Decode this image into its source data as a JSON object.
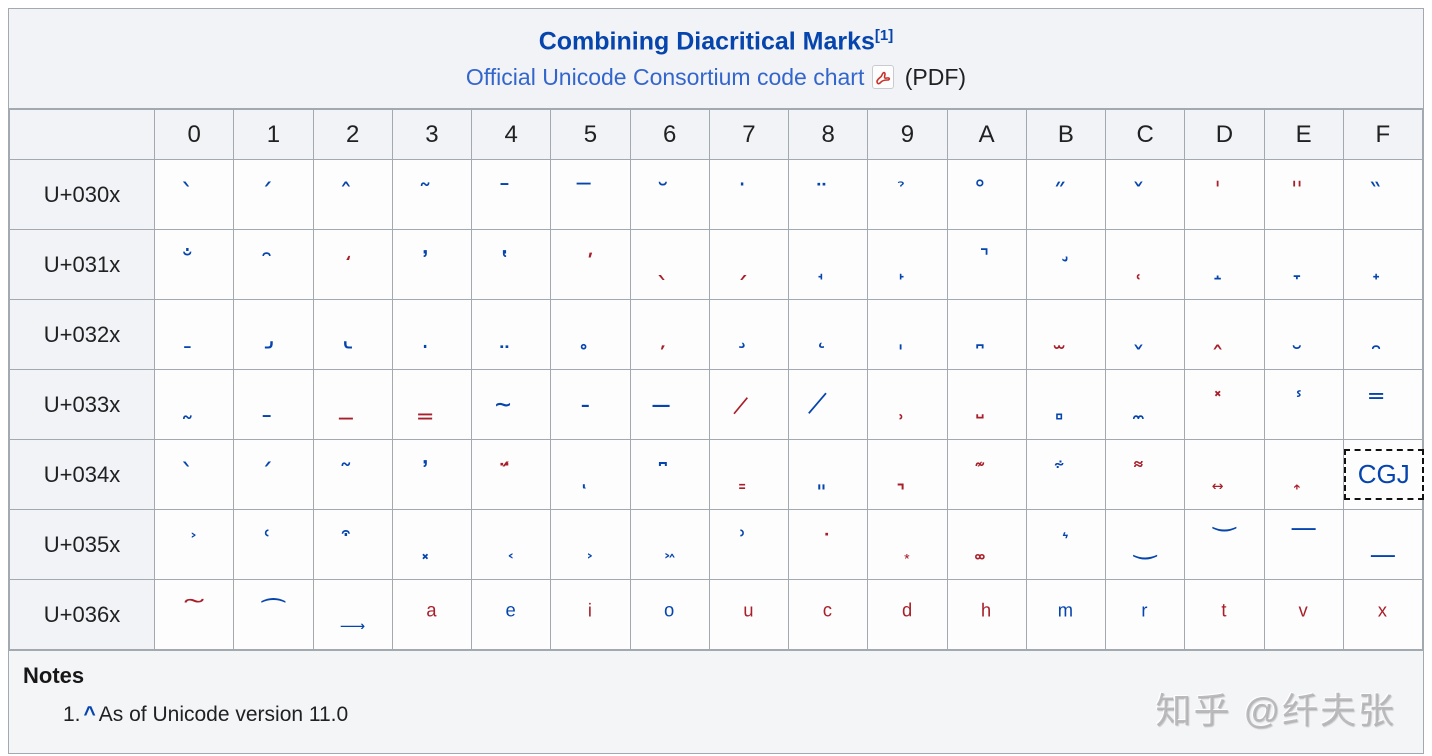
{
  "header": {
    "title": "Combining Diacritical Marks",
    "title_ref": "[1]",
    "subtitle_link": "Official Unicode Consortium code chart",
    "subtitle_suffix": "(PDF)"
  },
  "colors": {
    "blue": "#0645ad",
    "red": "#a81f29"
  },
  "table": {
    "col_headers": [
      "0",
      "1",
      "2",
      "3",
      "4",
      "5",
      "6",
      "7",
      "8",
      "9",
      "A",
      "B",
      "C",
      "D",
      "E",
      "F"
    ],
    "rows": [
      {
        "label": "U+030x",
        "cells": [
          {
            "char": "̀",
            "color": "blue"
          },
          {
            "char": "́",
            "color": "blue"
          },
          {
            "char": "̂",
            "color": "blue"
          },
          {
            "char": "̃",
            "color": "blue"
          },
          {
            "char": "̄",
            "color": "blue"
          },
          {
            "char": "̅",
            "color": "blue"
          },
          {
            "char": "̆",
            "color": "blue"
          },
          {
            "char": "̇",
            "color": "blue"
          },
          {
            "char": "̈",
            "color": "blue"
          },
          {
            "char": "̉",
            "color": "blue"
          },
          {
            "char": "̊",
            "color": "blue"
          },
          {
            "char": "̋",
            "color": "blue"
          },
          {
            "char": "̌",
            "color": "blue"
          },
          {
            "char": "̍",
            "color": "red"
          },
          {
            "char": "̎",
            "color": "red"
          },
          {
            "char": "̏",
            "color": "blue"
          }
        ]
      },
      {
        "label": "U+031x",
        "cells": [
          {
            "char": "̐",
            "color": "blue"
          },
          {
            "char": "̑",
            "color": "blue"
          },
          {
            "char": "̒",
            "color": "red"
          },
          {
            "char": "̓",
            "color": "blue"
          },
          {
            "char": "̔",
            "color": "blue"
          },
          {
            "char": "̕",
            "color": "red"
          },
          {
            "char": "̖",
            "color": "red"
          },
          {
            "char": "̗",
            "color": "red"
          },
          {
            "char": "̘",
            "color": "blue"
          },
          {
            "char": "̙",
            "color": "blue"
          },
          {
            "char": "̚",
            "color": "blue"
          },
          {
            "char": "̛",
            "color": "blue"
          },
          {
            "char": "̜",
            "color": "red"
          },
          {
            "char": "̝",
            "color": "blue"
          },
          {
            "char": "̞",
            "color": "blue"
          },
          {
            "char": "̟",
            "color": "blue"
          }
        ]
      },
      {
        "label": "U+032x",
        "cells": [
          {
            "char": "̠",
            "color": "blue"
          },
          {
            "char": "̡",
            "color": "blue"
          },
          {
            "char": "̢",
            "color": "blue"
          },
          {
            "char": "̣",
            "color": "blue"
          },
          {
            "char": "̤",
            "color": "blue"
          },
          {
            "char": "̥",
            "color": "blue"
          },
          {
            "char": "̦",
            "color": "red"
          },
          {
            "char": "̧",
            "color": "blue"
          },
          {
            "char": "̨",
            "color": "blue"
          },
          {
            "char": "̩",
            "color": "blue"
          },
          {
            "char": "̪",
            "color": "blue"
          },
          {
            "char": "̫",
            "color": "red"
          },
          {
            "char": "̬",
            "color": "blue"
          },
          {
            "char": "̭",
            "color": "red"
          },
          {
            "char": "̮",
            "color": "blue"
          },
          {
            "char": "̯",
            "color": "blue"
          }
        ]
      },
      {
        "label": "U+033x",
        "cells": [
          {
            "char": "̰",
            "color": "blue"
          },
          {
            "char": "̱",
            "color": "blue"
          },
          {
            "char": "̲",
            "color": "red"
          },
          {
            "char": "̳",
            "color": "red"
          },
          {
            "char": "̴",
            "color": "blue"
          },
          {
            "char": "̵",
            "color": "blue"
          },
          {
            "char": "̶",
            "color": "blue"
          },
          {
            "char": "̷",
            "color": "red"
          },
          {
            "char": "̸",
            "color": "blue"
          },
          {
            "char": "̹",
            "color": "red"
          },
          {
            "char": "̺",
            "color": "red"
          },
          {
            "char": "̻",
            "color": "blue"
          },
          {
            "char": "̼",
            "color": "blue"
          },
          {
            "char": "̽",
            "color": "red"
          },
          {
            "char": "̾",
            "color": "blue"
          },
          {
            "char": "̿",
            "color": "blue"
          }
        ]
      },
      {
        "label": "U+034x",
        "cells": [
          {
            "char": "̀",
            "color": "blue"
          },
          {
            "char": "́",
            "color": "blue"
          },
          {
            "char": "͂",
            "color": "blue"
          },
          {
            "char": "̓",
            "color": "blue"
          },
          {
            "char": "̈́",
            "color": "red"
          },
          {
            "char": "ͅ",
            "color": "blue"
          },
          {
            "char": "͆",
            "color": "blue"
          },
          {
            "char": "͇",
            "color": "red"
          },
          {
            "char": "͈",
            "color": "blue"
          },
          {
            "char": "͉",
            "color": "red"
          },
          {
            "char": "͊",
            "color": "red"
          },
          {
            "char": "͋",
            "color": "blue"
          },
          {
            "char": "͌",
            "color": "red"
          },
          {
            "char": "͍",
            "color": "red"
          },
          {
            "char": "͎",
            "color": "red"
          },
          {
            "special": "cgj",
            "label": "CGJ",
            "color": "blue"
          }
        ]
      },
      {
        "label": "U+035x",
        "cells": [
          {
            "char": "͐",
            "color": "blue"
          },
          {
            "char": "͑",
            "color": "blue"
          },
          {
            "char": "͒",
            "color": "blue"
          },
          {
            "char": "͓",
            "color": "blue"
          },
          {
            "char": "͔",
            "color": "blue"
          },
          {
            "char": "͕",
            "color": "blue"
          },
          {
            "char": "͖",
            "color": "blue"
          },
          {
            "char": "͗",
            "color": "blue"
          },
          {
            "char": "͘",
            "color": "red"
          },
          {
            "char": "͙",
            "color": "red"
          },
          {
            "char": "͚",
            "color": "red"
          },
          {
            "char": "͛",
            "color": "blue"
          },
          {
            "char": "͜",
            "color": "blue"
          },
          {
            "char": "͝",
            "color": "blue"
          },
          {
            "char": "͞",
            "color": "blue"
          },
          {
            "char": "͟",
            "color": "blue"
          }
        ]
      },
      {
        "label": "U+036x",
        "cells": [
          {
            "char": "͠",
            "color": "red"
          },
          {
            "char": "͡",
            "color": "blue"
          },
          {
            "char": "͢",
            "color": "blue"
          },
          {
            "char": "ͣ",
            "color": "red"
          },
          {
            "char": "ͤ",
            "color": "blue"
          },
          {
            "char": "ͥ",
            "color": "red"
          },
          {
            "char": "ͦ",
            "color": "blue"
          },
          {
            "char": "ͧ",
            "color": "red"
          },
          {
            "char": "ͨ",
            "color": "red"
          },
          {
            "char": "ͩ",
            "color": "red"
          },
          {
            "char": "ͪ",
            "color": "red"
          },
          {
            "char": "ͫ",
            "color": "blue"
          },
          {
            "char": "ͬ",
            "color": "blue"
          },
          {
            "char": "ͭ",
            "color": "red"
          },
          {
            "char": "ͮ",
            "color": "red"
          },
          {
            "char": "ͯ",
            "color": "red"
          }
        ]
      }
    ]
  },
  "notes": {
    "heading": "Notes",
    "items": [
      {
        "number": "1.",
        "backlink": "^",
        "text": "As of Unicode version 11.0"
      }
    ]
  },
  "watermark": "知乎 @纤夫张"
}
